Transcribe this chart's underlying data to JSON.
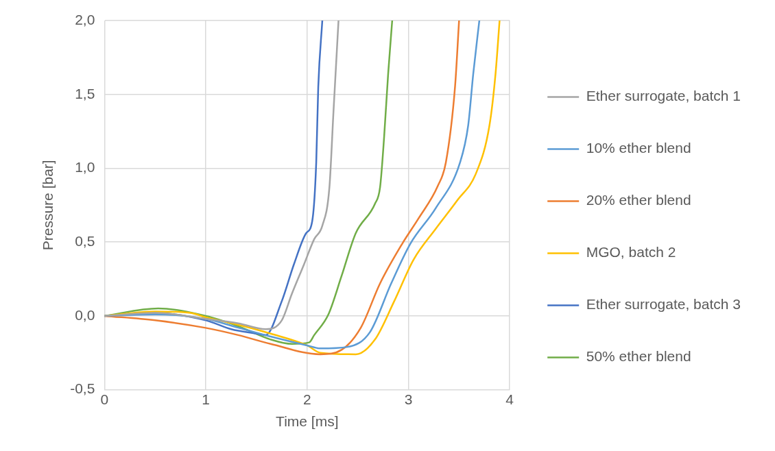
{
  "chart_data": {
    "type": "line",
    "xlabel": "Time [ms]",
    "ylabel": "Pressure [bar]",
    "xlim": [
      0,
      4
    ],
    "xticks": [
      0,
      1,
      2,
      3,
      4
    ],
    "ylim": [
      -0.5,
      2.0
    ],
    "yticks": [
      {
        "value": -0.5,
        "label": "-0,5"
      },
      {
        "value": 0,
        "label": "0,0"
      },
      {
        "value": 0.5,
        "label": "0,5"
      },
      {
        "value": 1.0,
        "label": "1,0"
      },
      {
        "value": 1.5,
        "label": "1,5"
      },
      {
        "value": 2.0,
        "label": "2,0"
      }
    ],
    "grid": true,
    "legend": "right",
    "marker": "none",
    "line_style": "solid",
    "series": [
      {
        "name": "Ether surrogate, batch 1",
        "color": "#a5a5a5",
        "x": [
          0,
          0.5,
          1.0,
          1.32,
          1.59,
          1.75,
          1.85,
          1.97,
          2.07,
          2.15,
          2.22,
          2.26,
          2.31
        ],
        "values": [
          0,
          0.02,
          -0.02,
          -0.05,
          -0.09,
          -0.03,
          0.15,
          0.35,
          0.52,
          0.61,
          0.87,
          1.38,
          2.0
        ]
      },
      {
        "name": "10% ether blend",
        "color": "#5b9bd5",
        "x": [
          0,
          0.5,
          1.0,
          1.32,
          1.64,
          2.0,
          2.13,
          2.4,
          2.62,
          2.83,
          3.02,
          3.27,
          3.51,
          3.59,
          3.64,
          3.7
        ],
        "values": [
          0,
          0.01,
          -0.02,
          -0.08,
          -0.14,
          -0.2,
          -0.22,
          -0.21,
          -0.11,
          0.22,
          0.49,
          0.73,
          1.04,
          1.29,
          1.64,
          2.0
        ]
      },
      {
        "name": "20% ether blend",
        "color": "#ed7d31",
        "x": [
          0,
          0.5,
          0.99,
          1.32,
          1.64,
          2.13,
          2.34,
          2.53,
          2.72,
          2.94,
          3.1,
          3.29,
          3.37,
          3.46,
          3.5
        ],
        "values": [
          0,
          -0.03,
          -0.08,
          -0.13,
          -0.19,
          -0.26,
          -0.23,
          -0.08,
          0.22,
          0.49,
          0.66,
          0.88,
          1.04,
          1.55,
          2.0
        ]
      },
      {
        "name": "MGO, batch 2",
        "color": "#ffc000",
        "x": [
          0,
          0.5,
          0.85,
          1.0,
          1.32,
          1.64,
          2.0,
          2.13,
          2.48,
          2.67,
          2.86,
          3.05,
          3.27,
          3.48,
          3.67,
          3.8,
          3.86,
          3.9
        ],
        "values": [
          0,
          0.03,
          0.02,
          -0.01,
          -0.06,
          -0.12,
          -0.2,
          -0.25,
          -0.26,
          -0.16,
          0.1,
          0.38,
          0.59,
          0.78,
          0.97,
          1.29,
          1.64,
          2.0
        ]
      },
      {
        "name": "Ether surrogate, batch 3",
        "color": "#4472c4",
        "x": [
          0,
          0.5,
          1.0,
          1.25,
          1.5,
          1.59,
          1.75,
          1.87,
          1.99,
          2.05,
          2.09,
          2.11,
          2.15
        ],
        "values": [
          0,
          0.02,
          -0.03,
          -0.09,
          -0.12,
          -0.13,
          0.1,
          0.35,
          0.56,
          0.64,
          1.04,
          1.55,
          2.0
        ]
      },
      {
        "name": "50% ether blend",
        "color": "#70ad47",
        "x": [
          0,
          0.53,
          1.0,
          1.32,
          1.64,
          1.85,
          2.02,
          2.07,
          2.21,
          2.34,
          2.48,
          2.67,
          2.72,
          2.76,
          2.8,
          2.84
        ],
        "values": [
          0,
          0.05,
          0.0,
          -0.07,
          -0.16,
          -0.19,
          -0.18,
          -0.13,
          0.01,
          0.27,
          0.56,
          0.76,
          0.87,
          1.21,
          1.64,
          2.0
        ]
      }
    ]
  }
}
